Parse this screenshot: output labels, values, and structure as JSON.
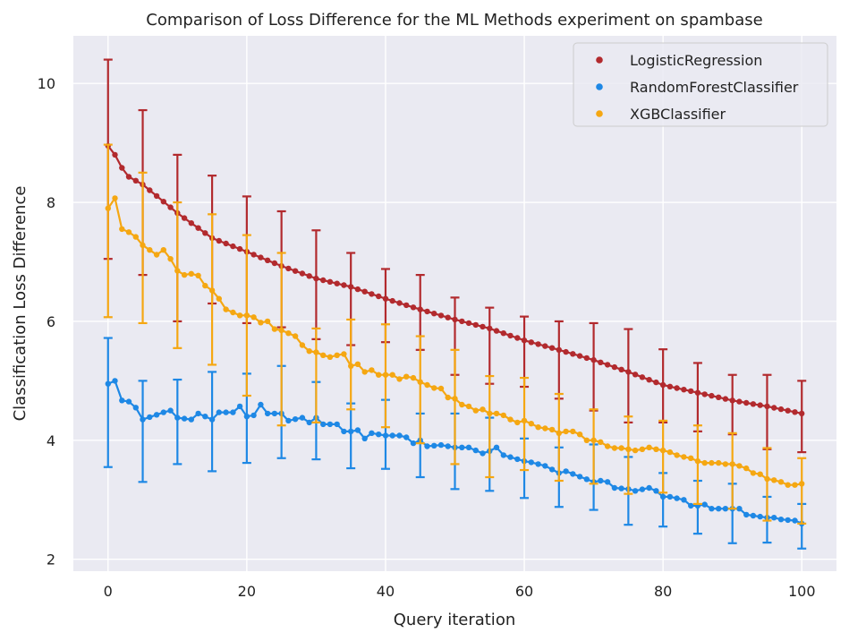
{
  "chart_data": {
    "type": "scatter",
    "title": "Comparison of Loss Difference for the ML Methods experiment on spambase",
    "xlabel": "Query iteration",
    "ylabel": "Classification Loss Difference",
    "xlim": [
      -5,
      105
    ],
    "ylim": [
      1.8,
      10.8
    ],
    "xticks": [
      0,
      20,
      40,
      60,
      80,
      100
    ],
    "yticks": [
      2,
      4,
      6,
      8,
      10
    ],
    "grid": true,
    "legend_position": "top-right",
    "series": [
      {
        "name": "LogisticRegression",
        "color": "#b22a2e",
        "anchors": [
          [
            0,
            8.95
          ],
          [
            1,
            8.8
          ],
          [
            2,
            8.58
          ],
          [
            3,
            8.43
          ],
          [
            5,
            8.3
          ],
          [
            10,
            7.82
          ],
          [
            15,
            7.4
          ],
          [
            20,
            7.17
          ],
          [
            25,
            6.93
          ],
          [
            30,
            6.72
          ],
          [
            35,
            6.58
          ],
          [
            40,
            6.38
          ],
          [
            45,
            6.2
          ],
          [
            50,
            6.03
          ],
          [
            55,
            5.88
          ],
          [
            60,
            5.68
          ],
          [
            65,
            5.52
          ],
          [
            70,
            5.35
          ],
          [
            75,
            5.15
          ],
          [
            80,
            4.93
          ],
          [
            85,
            4.8
          ],
          [
            90,
            4.67
          ],
          [
            95,
            4.57
          ],
          [
            100,
            4.45
          ]
        ],
        "error_bars": [
          {
            "x": 0,
            "y": 8.95,
            "low": 7.05,
            "high": 10.4
          },
          {
            "x": 5,
            "y": 8.3,
            "low": 6.78,
            "high": 9.55
          },
          {
            "x": 10,
            "y": 7.82,
            "low": 6.0,
            "high": 8.8
          },
          {
            "x": 15,
            "y": 7.4,
            "low": 6.3,
            "high": 8.45
          },
          {
            "x": 20,
            "y": 7.17,
            "low": 5.97,
            "high": 8.1
          },
          {
            "x": 25,
            "y": 6.93,
            "low": 5.9,
            "high": 7.85
          },
          {
            "x": 30,
            "y": 6.72,
            "low": 5.7,
            "high": 7.53
          },
          {
            "x": 35,
            "y": 6.58,
            "low": 5.6,
            "high": 7.15
          },
          {
            "x": 40,
            "y": 6.38,
            "low": 5.65,
            "high": 6.88
          },
          {
            "x": 45,
            "y": 6.2,
            "low": 5.52,
            "high": 6.78
          },
          {
            "x": 50,
            "y": 6.03,
            "low": 5.1,
            "high": 6.4
          },
          {
            "x": 55,
            "y": 5.88,
            "low": 4.95,
            "high": 6.23
          },
          {
            "x": 60,
            "y": 5.68,
            "low": 4.9,
            "high": 6.08
          },
          {
            "x": 65,
            "y": 5.52,
            "low": 4.7,
            "high": 6.0
          },
          {
            "x": 70,
            "y": 5.35,
            "low": 4.5,
            "high": 5.97
          },
          {
            "x": 75,
            "y": 5.15,
            "low": 4.3,
            "high": 5.87
          },
          {
            "x": 80,
            "y": 4.93,
            "low": 4.3,
            "high": 5.53
          },
          {
            "x": 85,
            "y": 4.8,
            "low": 4.15,
            "high": 5.3
          },
          {
            "x": 90,
            "y": 4.67,
            "low": 4.1,
            "high": 5.1
          },
          {
            "x": 95,
            "y": 4.57,
            "low": 3.85,
            "high": 5.1
          },
          {
            "x": 100,
            "y": 4.45,
            "low": 3.8,
            "high": 5.0
          }
        ]
      },
      {
        "name": "RandomForestClassifier",
        "color": "#1e88e5",
        "anchors": [
          [
            0,
            4.95
          ],
          [
            1,
            5.0
          ],
          [
            2,
            4.67
          ],
          [
            3,
            4.65
          ],
          [
            4,
            4.55
          ],
          [
            5,
            4.35
          ],
          [
            8,
            4.47
          ],
          [
            9,
            4.5
          ],
          [
            10,
            4.38
          ],
          [
            12,
            4.35
          ],
          [
            13,
            4.45
          ],
          [
            15,
            4.35
          ],
          [
            16,
            4.47
          ],
          [
            18,
            4.47
          ],
          [
            19,
            4.57
          ],
          [
            20,
            4.4
          ],
          [
            21,
            4.42
          ],
          [
            22,
            4.6
          ],
          [
            23,
            4.45
          ],
          [
            25,
            4.45
          ],
          [
            26,
            4.33
          ],
          [
            28,
            4.38
          ],
          [
            29,
            4.3
          ],
          [
            30,
            4.38
          ],
          [
            31,
            4.27
          ],
          [
            33,
            4.27
          ],
          [
            34,
            4.15
          ],
          [
            35,
            4.15
          ],
          [
            36,
            4.17
          ],
          [
            37,
            4.03
          ],
          [
            38,
            4.12
          ],
          [
            40,
            4.08
          ],
          [
            42,
            4.08
          ],
          [
            43,
            4.05
          ],
          [
            44,
            3.95
          ],
          [
            45,
            4.0
          ],
          [
            46,
            3.9
          ],
          [
            48,
            3.92
          ],
          [
            50,
            3.88
          ],
          [
            52,
            3.88
          ],
          [
            54,
            3.78
          ],
          [
            55,
            3.82
          ],
          [
            56,
            3.88
          ],
          [
            57,
            3.75
          ],
          [
            60,
            3.65
          ],
          [
            61,
            3.63
          ],
          [
            63,
            3.57
          ],
          [
            65,
            3.45
          ],
          [
            66,
            3.48
          ],
          [
            70,
            3.3
          ],
          [
            71,
            3.32
          ],
          [
            72,
            3.3
          ],
          [
            73,
            3.2
          ],
          [
            75,
            3.18
          ],
          [
            76,
            3.15
          ],
          [
            78,
            3.2
          ],
          [
            79,
            3.15
          ],
          [
            80,
            3.05
          ],
          [
            81,
            3.05
          ],
          [
            83,
            3.0
          ],
          [
            84,
            2.9
          ],
          [
            85,
            2.9
          ],
          [
            86,
            2.92
          ],
          [
            87,
            2.85
          ],
          [
            90,
            2.85
          ],
          [
            91,
            2.85
          ],
          [
            92,
            2.75
          ],
          [
            95,
            2.7
          ],
          [
            96,
            2.7
          ],
          [
            97,
            2.67
          ],
          [
            99,
            2.65
          ],
          [
            100,
            2.6
          ]
        ],
        "error_bars": [
          {
            "x": 0,
            "y": 4.95,
            "low": 3.55,
            "high": 5.72
          },
          {
            "x": 5,
            "y": 4.35,
            "low": 3.3,
            "high": 5.0
          },
          {
            "x": 10,
            "y": 4.38,
            "low": 3.6,
            "high": 5.02
          },
          {
            "x": 15,
            "y": 4.35,
            "low": 3.48,
            "high": 5.15
          },
          {
            "x": 20,
            "y": 4.4,
            "low": 3.62,
            "high": 5.12
          },
          {
            "x": 25,
            "y": 4.45,
            "low": 3.7,
            "high": 5.25
          },
          {
            "x": 30,
            "y": 4.38,
            "low": 3.68,
            "high": 4.98
          },
          {
            "x": 35,
            "y": 4.15,
            "low": 3.53,
            "high": 4.62
          },
          {
            "x": 40,
            "y": 4.08,
            "low": 3.52,
            "high": 4.68
          },
          {
            "x": 45,
            "y": 4.0,
            "low": 3.38,
            "high": 4.45
          },
          {
            "x": 50,
            "y": 3.88,
            "low": 3.18,
            "high": 4.45
          },
          {
            "x": 55,
            "y": 3.82,
            "low": 3.15,
            "high": 4.38
          },
          {
            "x": 60,
            "y": 3.65,
            "low": 3.03,
            "high": 4.03
          },
          {
            "x": 65,
            "y": 3.45,
            "low": 2.88,
            "high": 3.88
          },
          {
            "x": 70,
            "y": 3.3,
            "low": 2.83,
            "high": 3.93
          },
          {
            "x": 75,
            "y": 3.18,
            "low": 2.58,
            "high": 3.72
          },
          {
            "x": 80,
            "y": 3.05,
            "low": 2.55,
            "high": 3.45
          },
          {
            "x": 85,
            "y": 2.9,
            "low": 2.43,
            "high": 3.32
          },
          {
            "x": 90,
            "y": 2.85,
            "low": 2.27,
            "high": 3.27
          },
          {
            "x": 95,
            "y": 2.7,
            "low": 2.28,
            "high": 3.05
          },
          {
            "x": 100,
            "y": 2.6,
            "low": 2.18,
            "high": 2.93
          }
        ]
      },
      {
        "name": "XGBClassifier",
        "color": "#f5a712",
        "anchors": [
          [
            0,
            7.9
          ],
          [
            1,
            8.07
          ],
          [
            2,
            7.55
          ],
          [
            3,
            7.5
          ],
          [
            4,
            7.42
          ],
          [
            5,
            7.28
          ],
          [
            6,
            7.2
          ],
          [
            7,
            7.12
          ],
          [
            8,
            7.2
          ],
          [
            9,
            7.05
          ],
          [
            10,
            6.85
          ],
          [
            11,
            6.78
          ],
          [
            12,
            6.8
          ],
          [
            13,
            6.77
          ],
          [
            14,
            6.6
          ],
          [
            15,
            6.52
          ],
          [
            16,
            6.38
          ],
          [
            17,
            6.2
          ],
          [
            18,
            6.15
          ],
          [
            19,
            6.1
          ],
          [
            20,
            6.1
          ],
          [
            21,
            6.07
          ],
          [
            22,
            5.98
          ],
          [
            23,
            6.0
          ],
          [
            24,
            5.87
          ],
          [
            25,
            5.85
          ],
          [
            26,
            5.8
          ],
          [
            27,
            5.75
          ],
          [
            28,
            5.6
          ],
          [
            29,
            5.5
          ],
          [
            30,
            5.48
          ],
          [
            31,
            5.43
          ],
          [
            32,
            5.4
          ],
          [
            33,
            5.43
          ],
          [
            34,
            5.45
          ],
          [
            35,
            5.25
          ],
          [
            36,
            5.28
          ],
          [
            37,
            5.15
          ],
          [
            38,
            5.18
          ],
          [
            39,
            5.1
          ],
          [
            40,
            5.1
          ],
          [
            41,
            5.1
          ],
          [
            42,
            5.03
          ],
          [
            43,
            5.07
          ],
          [
            44,
            5.05
          ],
          [
            45,
            4.98
          ],
          [
            46,
            4.93
          ],
          [
            47,
            4.88
          ],
          [
            48,
            4.87
          ],
          [
            49,
            4.72
          ],
          [
            50,
            4.7
          ],
          [
            51,
            4.6
          ],
          [
            52,
            4.57
          ],
          [
            53,
            4.5
          ],
          [
            54,
            4.52
          ],
          [
            55,
            4.45
          ],
          [
            56,
            4.45
          ],
          [
            57,
            4.42
          ],
          [
            58,
            4.35
          ],
          [
            59,
            4.3
          ],
          [
            60,
            4.33
          ],
          [
            61,
            4.28
          ],
          [
            62,
            4.22
          ],
          [
            63,
            4.2
          ],
          [
            64,
            4.18
          ],
          [
            65,
            4.12
          ],
          [
            66,
            4.15
          ],
          [
            67,
            4.15
          ],
          [
            68,
            4.1
          ],
          [
            69,
            4.0
          ],
          [
            70,
            4.0
          ],
          [
            71,
            3.97
          ],
          [
            72,
            3.9
          ],
          [
            73,
            3.87
          ],
          [
            74,
            3.87
          ],
          [
            75,
            3.85
          ],
          [
            76,
            3.83
          ],
          [
            77,
            3.85
          ],
          [
            78,
            3.88
          ],
          [
            79,
            3.85
          ],
          [
            80,
            3.83
          ],
          [
            81,
            3.8
          ],
          [
            82,
            3.75
          ],
          [
            83,
            3.72
          ],
          [
            84,
            3.7
          ],
          [
            85,
            3.65
          ],
          [
            86,
            3.62
          ],
          [
            87,
            3.62
          ],
          [
            88,
            3.62
          ],
          [
            89,
            3.6
          ],
          [
            90,
            3.6
          ],
          [
            91,
            3.57
          ],
          [
            92,
            3.53
          ],
          [
            93,
            3.45
          ],
          [
            94,
            3.43
          ],
          [
            95,
            3.35
          ],
          [
            96,
            3.33
          ],
          [
            97,
            3.3
          ],
          [
            98,
            3.25
          ],
          [
            99,
            3.25
          ],
          [
            100,
            3.27
          ]
        ],
        "error_bars": [
          {
            "x": 0,
            "y": 7.9,
            "low": 6.07,
            "high": 8.97
          },
          {
            "x": 5,
            "y": 7.28,
            "low": 5.97,
            "high": 8.5
          },
          {
            "x": 10,
            "y": 6.85,
            "low": 5.55,
            "high": 8.0
          },
          {
            "x": 15,
            "y": 6.52,
            "low": 5.27,
            "high": 7.8
          },
          {
            "x": 20,
            "y": 6.1,
            "low": 4.75,
            "high": 7.45
          },
          {
            "x": 25,
            "y": 5.85,
            "low": 4.25,
            "high": 7.15
          },
          {
            "x": 30,
            "y": 5.48,
            "low": 4.3,
            "high": 5.88
          },
          {
            "x": 35,
            "y": 5.25,
            "low": 4.52,
            "high": 6.03
          },
          {
            "x": 40,
            "y": 5.1,
            "low": 4.22,
            "high": 5.95
          },
          {
            "x": 45,
            "y": 4.98,
            "low": 3.95,
            "high": 5.75
          },
          {
            "x": 50,
            "y": 4.7,
            "low": 3.6,
            "high": 5.52
          },
          {
            "x": 55,
            "y": 4.45,
            "low": 3.38,
            "high": 5.08
          },
          {
            "x": 60,
            "y": 4.33,
            "low": 3.5,
            "high": 5.05
          },
          {
            "x": 65,
            "y": 4.12,
            "low": 3.32,
            "high": 4.78
          },
          {
            "x": 70,
            "y": 4.0,
            "low": 3.27,
            "high": 4.52
          },
          {
            "x": 75,
            "y": 3.85,
            "low": 3.1,
            "high": 4.4
          },
          {
            "x": 80,
            "y": 3.83,
            "low": 3.12,
            "high": 4.33
          },
          {
            "x": 85,
            "y": 3.65,
            "low": 2.93,
            "high": 4.25
          },
          {
            "x": 90,
            "y": 3.6,
            "low": 2.85,
            "high": 4.12
          },
          {
            "x": 95,
            "y": 3.35,
            "low": 2.65,
            "high": 3.87
          },
          {
            "x": 100,
            "y": 3.27,
            "low": 2.6,
            "high": 3.7
          }
        ]
      }
    ]
  }
}
